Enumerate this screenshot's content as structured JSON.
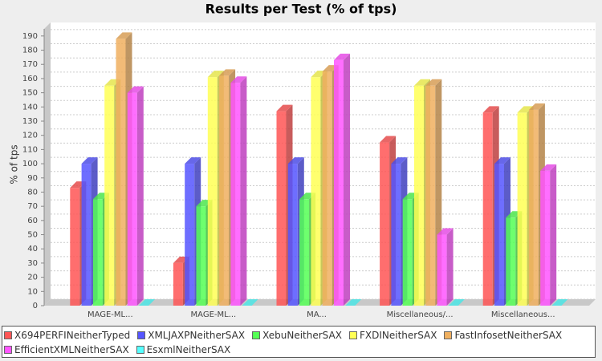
{
  "chart_data": {
    "type": "bar3d",
    "title": "Results per Test (% of tps)",
    "y_label": "% of tps",
    "categories": [
      "MAGE-ML...",
      "MAGE-ML...",
      "MA...",
      "Miscellaneous/...",
      "Miscellaneous..."
    ],
    "series": [
      {
        "name": "X694PERFINeitherTyped",
        "color": "#ff5555",
        "values": [
          83,
          30,
          137,
          115,
          136
        ]
      },
      {
        "name": "XMLJAXPNeitherSAX",
        "color": "#5555ff",
        "values": [
          100,
          100,
          100,
          100,
          100
        ]
      },
      {
        "name": "XebuNeitherSAX",
        "color": "#55ff55",
        "values": [
          75,
          70,
          75,
          75,
          62
        ]
      },
      {
        "name": "FXDINeitherSAX",
        "color": "#ffff55",
        "values": [
          155,
          161,
          161,
          155,
          136
        ]
      },
      {
        "name": "FastInfosetNeitherSAX",
        "color": "#f0b060",
        "values": [
          188,
          162,
          165,
          155,
          138
        ]
      },
      {
        "name": "EfficientXMLNeitherSAX",
        "color": "#ff55ff",
        "values": [
          150,
          157,
          173,
          50,
          95
        ]
      },
      {
        "name": "EsxmlNeitherSAX",
        "color": "#55ffff",
        "values": [
          0,
          0,
          0,
          0,
          0
        ]
      }
    ],
    "ylim": [
      0,
      195
    ],
    "yticks": [
      0,
      10,
      20,
      30,
      40,
      50,
      60,
      70,
      80,
      90,
      100,
      110,
      120,
      130,
      140,
      150,
      160,
      170,
      180,
      190
    ],
    "grid": true
  }
}
